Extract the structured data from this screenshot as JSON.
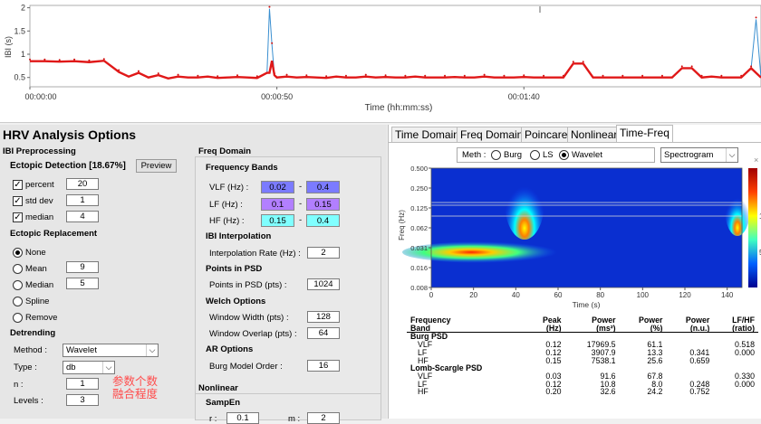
{
  "ibi_chart": {
    "ylabel": "IBI (s)",
    "xlabel": "Time (hh:mm:ss)",
    "yticks": [
      "2",
      "1.5",
      "1",
      "0.5"
    ],
    "xticks": [
      "00:00:00",
      "00:00:50",
      "00:01:40"
    ]
  },
  "chart_data": {
    "type": "line",
    "title": "",
    "xlabel": "Time (hh:mm:ss)",
    "ylabel": "IBI (s)",
    "ylim": [
      0.3,
      2.05
    ],
    "xticks": [
      "00:00:00",
      "00:00:50",
      "00:01:40"
    ],
    "series": [
      {
        "x_seconds": [
          0,
          3,
          6,
          9,
          12,
          15,
          18,
          20,
          22,
          24,
          26,
          28,
          30,
          32,
          34,
          36,
          38,
          40,
          42,
          44,
          46,
          48,
          48.5,
          49,
          49.5,
          50,
          52,
          54,
          56,
          58,
          60,
          62,
          64,
          66,
          68,
          70,
          72,
          74,
          76,
          78,
          80,
          82,
          84,
          86,
          88,
          90,
          92,
          94,
          96,
          98,
          100,
          102,
          104,
          106,
          108,
          110,
          112,
          114,
          116,
          118,
          120,
          122,
          124,
          126,
          128,
          130,
          132,
          134,
          136,
          138,
          140,
          142,
          144,
          146,
          147,
          148
        ],
        "values": [
          0.85,
          0.85,
          0.84,
          0.85,
          0.83,
          0.86,
          0.62,
          0.52,
          0.6,
          0.5,
          0.55,
          0.48,
          0.52,
          0.5,
          0.5,
          0.52,
          0.49,
          0.5,
          0.51,
          0.5,
          0.49,
          0.6,
          1.98,
          1.2,
          0.55,
          0.5,
          0.52,
          0.5,
          0.51,
          0.5,
          0.49,
          0.52,
          0.5,
          0.5,
          0.52,
          0.5,
          0.51,
          0.5,
          0.5,
          0.52,
          0.5,
          0.5,
          0.5,
          0.51,
          0.5,
          0.5,
          0.52,
          0.5,
          0.5,
          0.5,
          0.51,
          0.5,
          0.5,
          0.5,
          0.5,
          0.8,
          0.8,
          0.5,
          0.5,
          0.5,
          0.5,
          0.5,
          0.5,
          0.5,
          0.5,
          0.5,
          0.7,
          0.7,
          0.5,
          0.52,
          0.5,
          0.5,
          0.5,
          0.7,
          1.75,
          0.5
        ]
      }
    ]
  },
  "options": {
    "title": "HRV Analysis Options",
    "ibi_preprocessing": "IBI Preprocessing",
    "ectopic_detection": "Ectopic Detection [18.67%]",
    "preview_btn": "Preview",
    "percent_label": "percent",
    "percent_value": "20",
    "stddev_label": "std dev",
    "stddev_value": "1",
    "median_label": "median",
    "median_value": "4",
    "ectopic_replacement": "Ectopic Replacement",
    "none_label": "None",
    "mean_label": "Mean",
    "mean_value": "9",
    "median_r_label": "Median",
    "median_r_value": "5",
    "spline_label": "Spline",
    "remove_label": "Remove",
    "detrending": "Detrending",
    "method_label": "Method :",
    "method_value": "Wavelet",
    "type_label": "Type :",
    "type_value": "db",
    "n_label": "n :",
    "n_value": "1",
    "levels_label": "Levels :",
    "levels_value": "3",
    "annotation": "参数个数\n融合程度",
    "freq_domain": "Freq Domain",
    "frequency_bands": "Frequency Bands",
    "vlf_label": "VLF (Hz) :",
    "vlf_lo": "0.02",
    "vlf_hi": "0.4",
    "lf_label": "LF (Hz) :",
    "lf_lo": "0.1",
    "lf_hi": "0.15",
    "hf_label": "HF (Hz) :",
    "hf_lo": "0.15",
    "hf_hi": "0.4",
    "dash": "-",
    "ibi_interp": "IBI Interpolation",
    "interp_label": "Interpolation Rate (Hz) :",
    "interp_value": "2",
    "points_psd": "Points in PSD",
    "points_label": "Points in PSD (pts) :",
    "points_value": "1024",
    "welch": "Welch Options",
    "win_width_label": "Window Width (pts) :",
    "win_width_value": "128",
    "win_overlap_label": "Window Overlap (pts) :",
    "win_overlap_value": "64",
    "ar_options": "AR Options",
    "burg_label": "Burg Model Order :",
    "burg_value": "16",
    "nonlinear": "Nonlinear",
    "sampen": "SampEn",
    "r_label": "r :",
    "r_value": "0.1",
    "m_label": "m :",
    "m_value": "2"
  },
  "tabs": [
    "Time Domain",
    "Freq Domain",
    "Poincare",
    "Nonlinear",
    "Time-Freq"
  ],
  "tf": {
    "meth_label": "Meth :",
    "burg": "Burg",
    "ls": "LS",
    "wavelet": "Wavelet",
    "view_value": "Spectrogram",
    "ylabel": "Freq (Hz)",
    "xlabel": "Time (s)",
    "yticks": [
      "0.500",
      "0.250",
      "0.125",
      "0.062",
      "0.031",
      "0.016",
      "0.008"
    ],
    "xticks": [
      "0",
      "20",
      "40",
      "60",
      "80",
      "100",
      "120",
      "140"
    ],
    "cbar_labels": [
      "1",
      "5"
    ],
    "close": "×"
  },
  "results": {
    "head1": [
      "Frequency",
      "Peak",
      "Power",
      "Power",
      "Power",
      "LF/HF"
    ],
    "head2": [
      "Band",
      "(Hz)",
      "(ms²)",
      "(%)",
      "(n.u.)",
      "(ratio)"
    ],
    "burg_title": "Burg PSD",
    "burg_rows": [
      [
        "VLF",
        "0.12",
        "17969.5",
        "61.1",
        "",
        "0.518"
      ],
      [
        "LF",
        "0.12",
        "3907.9",
        "13.3",
        "0.341",
        "0.000"
      ],
      [
        "HF",
        "0.15",
        "7538.1",
        "25.6",
        "0.659",
        ""
      ]
    ],
    "ls_title": "Lomb-Scargle PSD",
    "ls_rows": [
      [
        "VLF",
        "0.03",
        "91.6",
        "67.8",
        "",
        "0.330"
      ],
      [
        "LF",
        "0.12",
        "10.8",
        "8.0",
        "0.248",
        "0.000"
      ],
      [
        "HF",
        "0.20",
        "32.6",
        "24.2",
        "0.752",
        ""
      ]
    ]
  }
}
